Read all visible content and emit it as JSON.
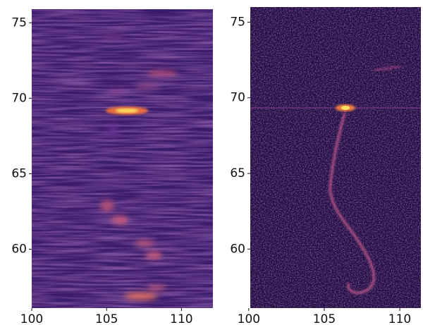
{
  "chart_data": [
    {
      "type": "heatmap",
      "color": "#3b1c6c",
      "xlim": [
        100,
        112.1
      ],
      "ylim": [
        56.1,
        75.9
      ],
      "xticks": [
        100,
        105,
        110
      ],
      "yticks": [
        60,
        65,
        70,
        75
      ]
    },
    {
      "type": "heatmap",
      "color": "#1e0c3e",
      "xlim": [
        100.1,
        111.4
      ],
      "ylim": [
        56.1,
        76
      ],
      "xticks": [
        100,
        105,
        110
      ],
      "yticks": [
        60,
        65,
        70,
        75
      ]
    }
  ]
}
